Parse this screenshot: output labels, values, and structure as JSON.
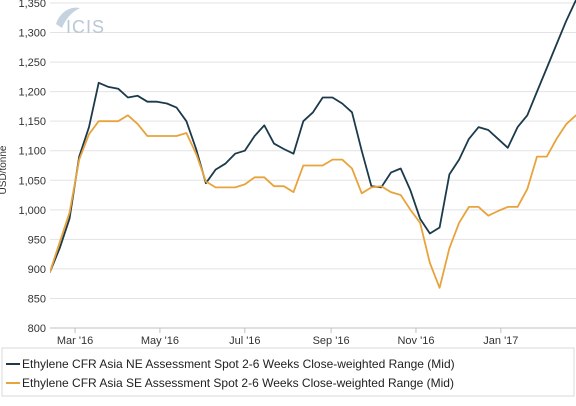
{
  "chart_data": {
    "type": "line",
    "watermark": "ICIS",
    "ylabel": "USD/tonne",
    "ylim": [
      800,
      1350
    ],
    "y_ticks": [
      800,
      850,
      900,
      950,
      1000,
      1050,
      1100,
      1150,
      1200,
      1250,
      1300,
      1350
    ],
    "y_tick_labels": [
      "800",
      "850",
      "900",
      "950",
      "1,000",
      "1,050",
      "1,100",
      "1,150",
      "1,200",
      "1,250",
      "1,300",
      "1,350"
    ],
    "xlim": [
      "2016-02-12",
      "2017-02-24"
    ],
    "x_ticks": [
      "2016-03-01",
      "2016-05-01",
      "2016-07-01",
      "2016-09-01",
      "2016-11-01",
      "2017-01-01"
    ],
    "x_tick_labels": [
      "Mar '16",
      "May '16",
      "Jul '16",
      "Sep '16",
      "Nov '16",
      "Jan '17"
    ],
    "grid": true,
    "legend_position": "bottom",
    "x": [
      "2016-02-12",
      "2016-02-19",
      "2016-02-26",
      "2016-03-04",
      "2016-03-11",
      "2016-03-18",
      "2016-03-25",
      "2016-04-01",
      "2016-04-08",
      "2016-04-15",
      "2016-04-22",
      "2016-04-29",
      "2016-05-06",
      "2016-05-13",
      "2016-05-20",
      "2016-05-27",
      "2016-06-03",
      "2016-06-10",
      "2016-06-17",
      "2016-06-24",
      "2016-07-01",
      "2016-07-08",
      "2016-07-15",
      "2016-07-22",
      "2016-07-29",
      "2016-08-05",
      "2016-08-12",
      "2016-08-19",
      "2016-08-26",
      "2016-09-02",
      "2016-09-09",
      "2016-09-16",
      "2016-09-23",
      "2016-09-30",
      "2016-10-07",
      "2016-10-14",
      "2016-10-21",
      "2016-10-28",
      "2016-11-04",
      "2016-11-11",
      "2016-11-18",
      "2016-11-25",
      "2016-12-02",
      "2016-12-09",
      "2016-12-16",
      "2016-12-23",
      "2016-12-30",
      "2017-01-06",
      "2017-01-13",
      "2017-01-20",
      "2017-01-27",
      "2017-02-03",
      "2017-02-10",
      "2017-02-17",
      "2017-02-24"
    ],
    "series": [
      {
        "name": "Ethylene CFR Asia NE Assessment Spot 2-6 Weeks Close-weighted Range (Mid)",
        "color": "#1b3a4b",
        "values": [
          895,
          935,
          985,
          1090,
          1140,
          1215,
          1208,
          1205,
          1190,
          1193,
          1183,
          1183,
          1180,
          1173,
          1150,
          1103,
          1045,
          1068,
          1078,
          1095,
          1100,
          1125,
          1143,
          1112,
          1103,
          1095,
          1150,
          1165,
          1190,
          1190,
          1180,
          1165,
          1100,
          1040,
          1038,
          1063,
          1070,
          1033,
          985,
          960,
          970,
          1060,
          1085,
          1120,
          1140,
          1135,
          1120,
          1105,
          1140,
          1160,
          1200,
          1240,
          1280,
          1320,
          1355
        ]
      },
      {
        "name": "Ethylene CFR Asia SE Assessment Spot 2-6 Weeks Close-weighted Range (Mid)",
        "color": "#e8a33c",
        "values": [
          895,
          945,
          995,
          1085,
          1128,
          1150,
          1150,
          1150,
          1160,
          1145,
          1125,
          1125,
          1125,
          1125,
          1130,
          1095,
          1048,
          1038,
          1038,
          1038,
          1043,
          1055,
          1055,
          1040,
          1040,
          1030,
          1075,
          1075,
          1075,
          1085,
          1085,
          1070,
          1028,
          1038,
          1040,
          1030,
          1025,
          1000,
          978,
          910,
          868,
          935,
          978,
          1005,
          1005,
          990,
          998,
          1005,
          1005,
          1035,
          1090,
          1090,
          1120,
          1145,
          1160
        ]
      }
    ]
  }
}
